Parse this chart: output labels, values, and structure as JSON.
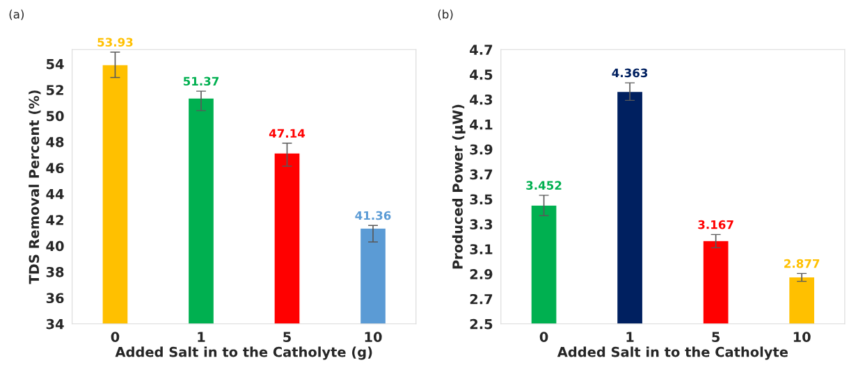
{
  "chart_data": [
    {
      "type": "bar",
      "xlabel": "Added Salt in to the Catholyte (g)",
      "ylabel": "TDS Removal Percent (%)",
      "annotations": [
        "(a)"
      ],
      "categories": [
        "0",
        "1",
        "5",
        "10"
      ],
      "values": [
        53.93,
        51.37,
        47.14,
        41.36
      ],
      "colors": [
        "#ffc000",
        "#00b050",
        "#ff0000",
        "#5b9bd5"
      ],
      "errors": [
        [
          52.95,
          54.9
        ],
        [
          50.4,
          51.9
        ],
        [
          46.13,
          47.89
        ],
        [
          40.3,
          41.57
        ]
      ],
      "ylim": [
        34,
        55.1
      ],
      "yticks": [
        34,
        36,
        38,
        40,
        42,
        44,
        46,
        48,
        50,
        52,
        54
      ],
      "grid": false,
      "data_labels": true
    },
    {
      "type": "bar",
      "xlabel": "Added Salt in to the Catholyte",
      "ylabel": "Produced Power (µW)",
      "annotations": [
        "(b)"
      ],
      "categories": [
        "0",
        "1",
        "5",
        "10"
      ],
      "values": [
        3.452,
        4.363,
        3.167,
        2.877
      ],
      "colors": [
        "#00b050",
        "#002060",
        "#ff0000",
        "#ffc000"
      ],
      "errors": [
        [
          3.367,
          3.531
        ],
        [
          4.292,
          4.433
        ],
        [
          3.11,
          3.216
        ],
        [
          2.841,
          2.904
        ]
      ],
      "ylim": [
        2.5,
        4.7
      ],
      "yticks": [
        2.5,
        2.7,
        2.9,
        3.1,
        3.3,
        3.5,
        3.7,
        3.9,
        4.1,
        4.3,
        4.5,
        4.7
      ],
      "grid": false,
      "data_labels": true
    }
  ]
}
